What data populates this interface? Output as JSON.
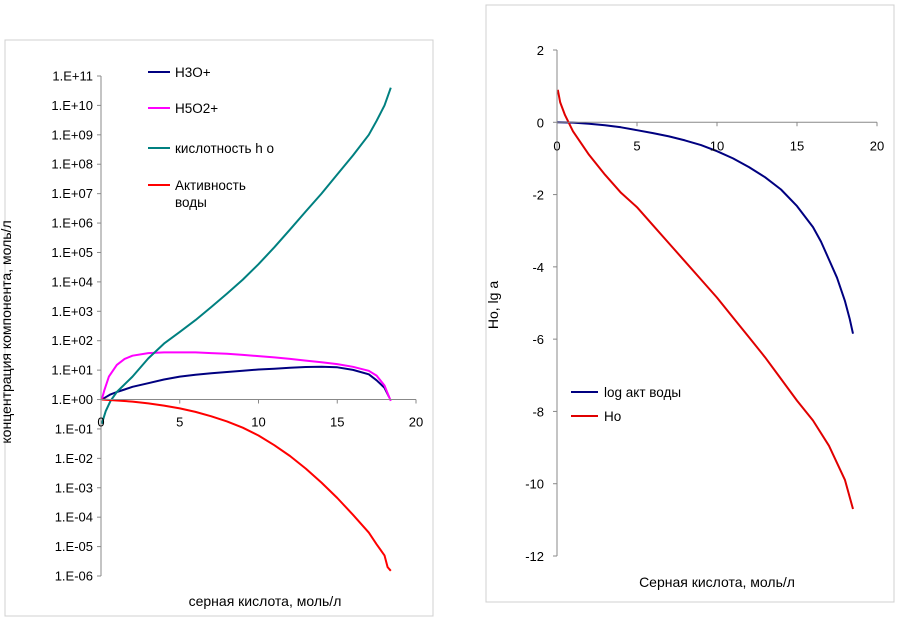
{
  "chart_data": [
    {
      "type": "line",
      "title": "",
      "xlabel": "серная кислота, моль/л",
      "ylabel": "концентрация компонента, моль/л",
      "xlim": [
        0,
        20
      ],
      "ylim": [
        1e-06,
        100000000000.0
      ],
      "yscale": "log",
      "grid": false,
      "legend_position": "top-middle",
      "x_ticks": [
        "0",
        "5",
        "10",
        "15",
        "20"
      ],
      "y_ticks": [
        "1.E-06",
        "1.E-05",
        "1.E-04",
        "1.E-03",
        "1.E-02",
        "1.E-01",
        "1.E+00",
        "1.E+01",
        "1.E+02",
        "1.E+03",
        "1.E+04",
        "1.E+05",
        "1.E+06",
        "1.E+07",
        "1.E+08",
        "1.E+09",
        "1.E+10",
        "1.E+11"
      ],
      "series": [
        {
          "name": "H3O+",
          "color": "#000080",
          "x": [
            0.05,
            0.3,
            0.6,
            1,
            1.5,
            2,
            3,
            4,
            5,
            6,
            7,
            8,
            9,
            10,
            11,
            12,
            13,
            14,
            15,
            16,
            17,
            17.5,
            18,
            18.3
          ],
          "y": [
            1,
            1.2,
            1.5,
            1.8,
            2.2,
            2.7,
            3.6,
            4.8,
            6,
            7,
            7.8,
            8.6,
            9.5,
            10.5,
            11.2,
            12,
            12.8,
            13,
            12.5,
            10.2,
            7.2,
            4.5,
            2.5,
            1.2
          ]
        },
        {
          "name": "H5O2+",
          "color": "#FF00FF",
          "x": [
            0.05,
            0.2,
            0.5,
            1,
            1.5,
            2,
            3,
            4,
            5,
            6,
            7,
            8,
            9,
            10,
            11,
            12,
            13,
            14,
            15,
            16,
            17,
            17.5,
            18,
            18.3,
            18.4
          ],
          "y": [
            1,
            2,
            6,
            15,
            24,
            31,
            38,
            40,
            40,
            40,
            38,
            36,
            33,
            30,
            27,
            24,
            21,
            18.5,
            16,
            13,
            9.5,
            6.5,
            3,
            1.2,
            0.9
          ]
        },
        {
          "name": "кислотность h o",
          "color": "#008080",
          "x": [
            0.05,
            0.3,
            0.6,
            1,
            2,
            3,
            4,
            5,
            6,
            7,
            8,
            9,
            10,
            11,
            12,
            13,
            14,
            15,
            16,
            17,
            17.5,
            18,
            18.4
          ],
          "y": [
            0.15,
            0.4,
            0.9,
            1.8,
            6,
            25,
            80,
            200,
            500,
            1400,
            4000,
            12000,
            40000,
            150000,
            600000,
            2500000,
            10000000,
            45000000,
            200000000,
            1000000000,
            3000000000,
            10000000000,
            40000000000
          ]
        },
        {
          "name": "Активность воды",
          "color": "#FF0000",
          "x": [
            0.05,
            1,
            2,
            3,
            4,
            5,
            6,
            7,
            8,
            9,
            10,
            11,
            12,
            13,
            14,
            15,
            16,
            16.5,
            17,
            17.5,
            18,
            18.2,
            18.4
          ],
          "y": [
            1,
            0.93,
            0.85,
            0.74,
            0.62,
            0.5,
            0.38,
            0.27,
            0.18,
            0.11,
            0.06,
            0.028,
            0.012,
            0.0045,
            0.0015,
            0.00045,
            0.00012,
            6e-05,
            3e-05,
            1.2e-05,
            5e-06,
            2e-06,
            1.5e-06
          ]
        }
      ],
      "legend_lines": [
        [
          "H3O+"
        ],
        [
          "H5O2+"
        ],
        [
          "кислотность h o"
        ],
        [
          "Активность",
          "воды"
        ]
      ]
    },
    {
      "type": "line",
      "title": "",
      "xlabel": "Серная кислота, моль/л",
      "ylabel": "Ho, lg a",
      "xlim": [
        0,
        20
      ],
      "ylim": [
        -12,
        2
      ],
      "grid": false,
      "legend_position": "lower-left",
      "x_ticks": [
        "0",
        "5",
        "10",
        "15",
        "20"
      ],
      "y_ticks": [
        "2",
        "0",
        "-2",
        "-4",
        "-6",
        "-8",
        "-10",
        "-12"
      ],
      "series": [
        {
          "name": "log акт воды",
          "color": "#000080",
          "x": [
            0,
            1,
            2,
            3,
            4,
            5,
            6,
            7,
            8,
            9,
            10,
            11,
            12,
            13,
            14,
            15,
            16,
            16.5,
            17,
            17.5,
            18,
            18.3,
            18.5
          ],
          "y": [
            0,
            -0.01,
            -0.04,
            -0.08,
            -0.14,
            -0.22,
            -0.3,
            -0.39,
            -0.5,
            -0.63,
            -0.8,
            -1.0,
            -1.24,
            -1.52,
            -1.86,
            -2.32,
            -2.9,
            -3.3,
            -3.8,
            -4.3,
            -4.95,
            -5.45,
            -5.85
          ]
        },
        {
          "name": "Ho",
          "color": "#E00000",
          "x": [
            0.05,
            0.2,
            0.5,
            1,
            2,
            3,
            4,
            5,
            6,
            7,
            8,
            9,
            10,
            11,
            12,
            13,
            14,
            15,
            16,
            17,
            18,
            18.5
          ],
          "y": [
            0.9,
            0.55,
            0.2,
            -0.25,
            -0.9,
            -1.45,
            -1.95,
            -2.35,
            -2.85,
            -3.35,
            -3.85,
            -4.35,
            -4.85,
            -5.4,
            -5.95,
            -6.5,
            -7.1,
            -7.7,
            -8.25,
            -8.95,
            -9.9,
            -10.7
          ]
        }
      ],
      "legend_lines": [
        [
          "log акт воды"
        ],
        [
          "Ho"
        ]
      ]
    }
  ]
}
